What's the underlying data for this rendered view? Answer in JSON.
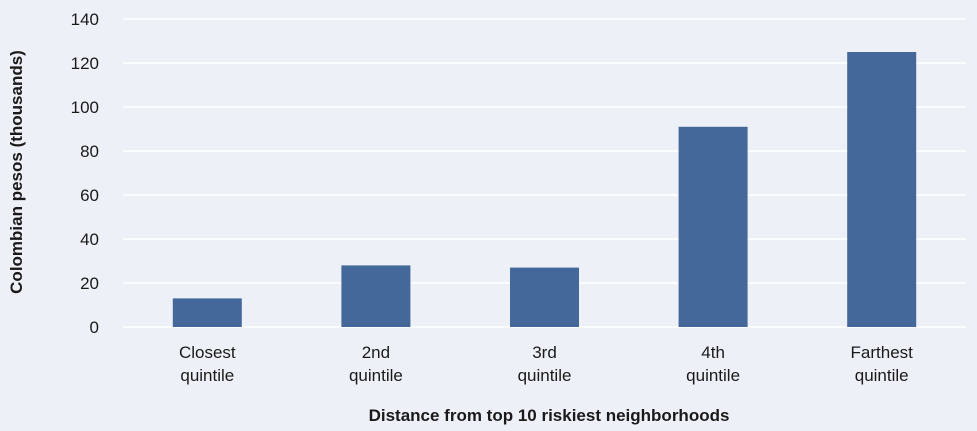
{
  "chart_data": {
    "type": "bar",
    "categories": [
      [
        "Closest",
        "quintile"
      ],
      [
        "2nd",
        "quintile"
      ],
      [
        "3rd",
        "quintile"
      ],
      [
        "4th",
        "quintile"
      ],
      [
        "Farthest",
        "quintile"
      ]
    ],
    "values": [
      13,
      28,
      27,
      91,
      125
    ],
    "title": "",
    "xlabel": "Distance from top 10 riskiest neighborhoods",
    "ylabel": "Colombian pesos (thousands)",
    "ylim": [
      0,
      140
    ],
    "yticks": [
      0,
      20,
      40,
      60,
      80,
      100,
      120,
      140
    ],
    "grid": true,
    "bar_color": "#44689a",
    "grid_color": "#ffffff",
    "background_color": "#eef0f7"
  }
}
